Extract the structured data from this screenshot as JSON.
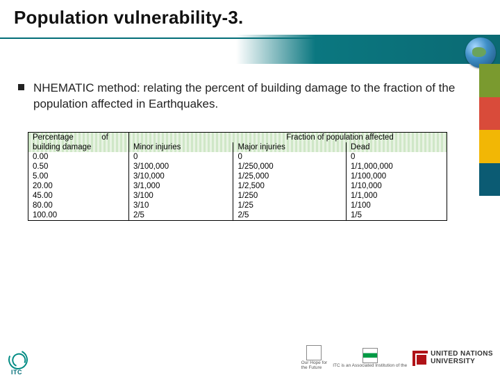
{
  "title": "Population vulnerability-3.",
  "bullet_text": "NHEMATIC method: relating the percent of building damage to the fraction of the population affected in Earthquakes.",
  "side_bars": [
    "#7a9a2f",
    "#d94b3a",
    "#f2b705",
    "#0b5b73"
  ],
  "table": {
    "header_bg_stripe_a": "#cfe7c7",
    "header_bg_stripe_b": "#e8f3e3",
    "col1_header_l1": "Percentage",
    "col1_header_l2": "building damage",
    "col1_header_spacer": "of",
    "group_header": "Fraction of population affected",
    "col2_header": "Minor injuries",
    "col3_header": "Major injuries",
    "col4_header": "Dead",
    "rows": [
      {
        "pct": "0.00",
        "minor": "0",
        "major": "0",
        "dead": "0"
      },
      {
        "pct": "0.50",
        "minor": "3/100,000",
        "major": "1/250,000",
        "dead": "1/1,000,000"
      },
      {
        "pct": "5.00",
        "minor": "3/10,000",
        "major": "1/25,000",
        "dead": "1/100,000"
      },
      {
        "pct": "20.00",
        "minor": "3/1,000",
        "major": "1/2,500",
        "dead": "1/10,000"
      },
      {
        "pct": "45.00",
        "minor": "3/100",
        "major": "1/250",
        "dead": "1/1,000"
      },
      {
        "pct": "80.00",
        "minor": "3/10",
        "major": "1/25",
        "dead": "1/100"
      },
      {
        "pct": "100.00",
        "minor": "2/5",
        "major": "2/5",
        "dead": "1/5"
      }
    ]
  },
  "footer": {
    "itc_label": "ITC",
    "un_caption_l1": "Our Hope for",
    "un_caption_l2": "the Future",
    "itc_assoc": "ITC is an Associated Institution of the",
    "unu_l1": "UNITED NATIONS",
    "unu_l2": "UNIVERSITY"
  }
}
